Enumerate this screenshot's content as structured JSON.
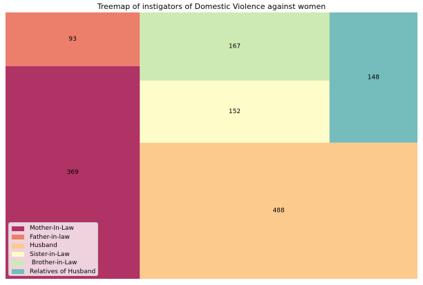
{
  "chart_data": {
    "type": "treemap",
    "title": "Treemap of instigators of Domestic Violence against women",
    "legend_position": "lower-left",
    "items": [
      {
        "name": "Mother-In-Law",
        "legend_label": "Mother-In-Law",
        "value": 369,
        "color": "#b03366"
      },
      {
        "name": "Father-in-law",
        "legend_label": "Father-in-law",
        "value": 93,
        "color": "#ec7e6c"
      },
      {
        "name": "Husband",
        "legend_label": "Husband",
        "value": 488,
        "color": "#fcca8c"
      },
      {
        "name": "Sister-in-Law",
        "legend_label": "Sister-in-Law",
        "value": 152,
        "color": "#fefcc8"
      },
      {
        "name": "Brother-in-Law",
        "legend_label": " Brother-in-Law",
        "value": 167,
        "color": "#cdeab2"
      },
      {
        "name": "Relatives of Husband",
        "legend_label": "Relatives of Husband",
        "value": 148,
        "color": "#75bcbc"
      }
    ]
  }
}
